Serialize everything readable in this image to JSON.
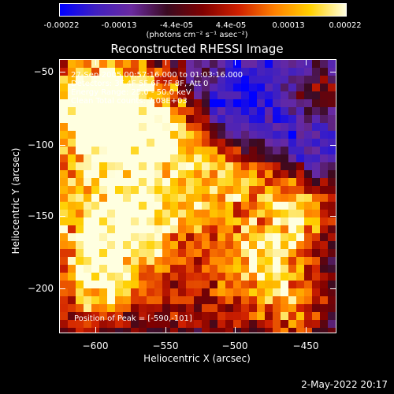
{
  "colorbar": {
    "ticks": [
      "-0.00022",
      "-0.00013",
      "-4.4e-05",
      "4.4e-05",
      "0.00013",
      "0.00022"
    ],
    "unit_label": "(photons cm⁻² s⁻¹ asec⁻²)"
  },
  "title": "Reconstructed RHESSI Image",
  "annotations": {
    "time_range": "27-Sep-2005 00:57:16.000 to 01:03:16.000",
    "detectors": "Detectors: 3F 4F 5F 6F 7F 8F, Att 0",
    "energy_range": "Energy Range: 25.0 - 50.0 keV",
    "method_counts": "Clean     Total counts: 7.08E+03",
    "peak_position": "Position of Peak = [-590,-101]"
  },
  "axes": {
    "xlabel": "Heliocentric X (arcsec)",
    "ylabel": "Heliocentric Y (arcsec)",
    "xticks": [
      "−600",
      "−550",
      "−500",
      "−450"
    ],
    "yticks": [
      "−50",
      "−100",
      "−150",
      "−200"
    ],
    "xlim": [
      -625,
      -430
    ],
    "ylim": [
      -232,
      -38
    ]
  },
  "footer": {
    "date": "2-May-2022 20:17"
  },
  "colors": {
    "colormap": [
      "#0000ff",
      "#4020c0",
      "#6a2aa0",
      "#3a0a20",
      "#800000",
      "#d02000",
      "#ff8000",
      "#ffd000",
      "#ffffe0"
    ]
  }
}
